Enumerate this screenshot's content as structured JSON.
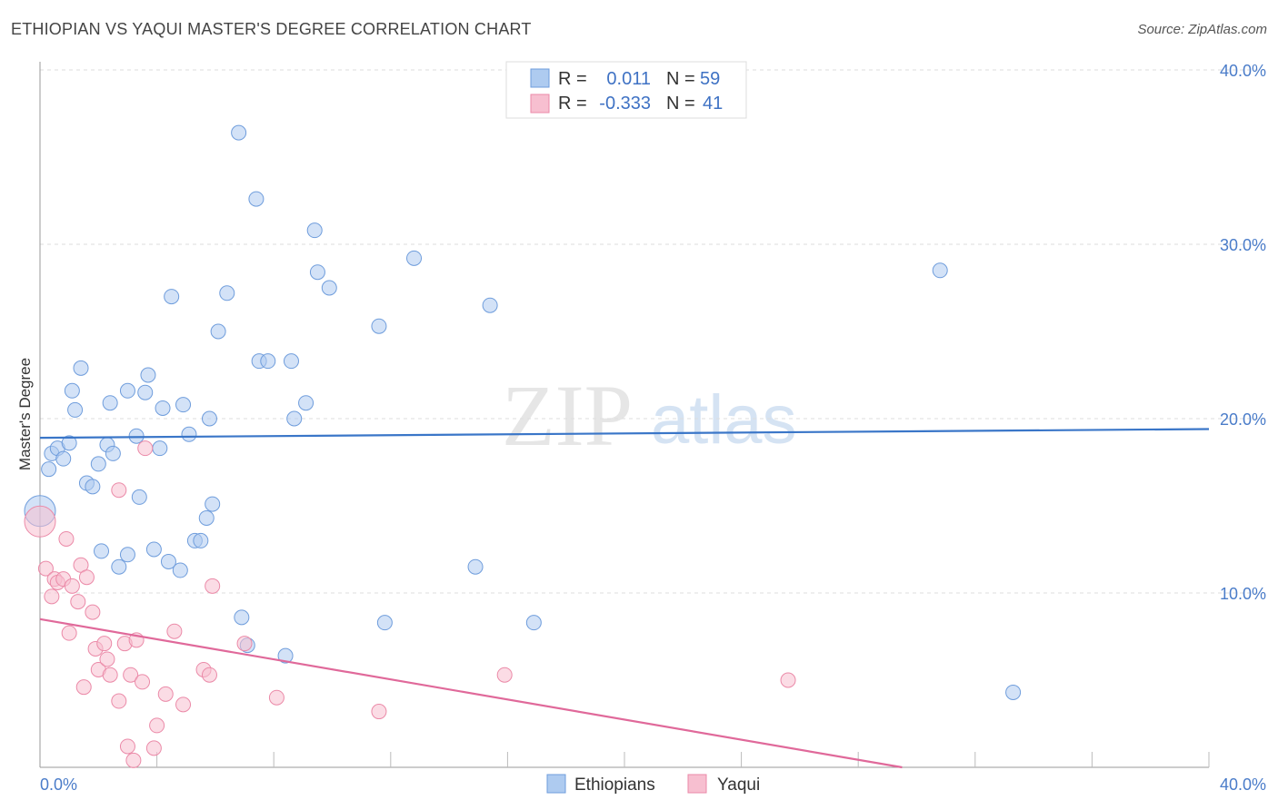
{
  "title": "ETHIOPIAN VS YAQUI MASTER'S DEGREE CORRELATION CHART",
  "source": "Source: ZipAtlas.com",
  "watermark": {
    "part1": "ZIP",
    "part2": "atlas"
  },
  "colors": {
    "blue_fill": "#aecbf0",
    "blue_stroke": "#6f9ddc",
    "blue_line": "#3a76c8",
    "pink_fill": "#f7bfd0",
    "pink_stroke": "#eb8aa8",
    "pink_line": "#e0699a",
    "grid": "#dddddd",
    "axis": "#999999"
  },
  "legend": {
    "rows": [
      {
        "r_label": "R =",
        "r_value": "0.011",
        "n_label": "N =",
        "n_value": "59"
      },
      {
        "r_label": "R =",
        "r_value": "-0.333",
        "n_label": "N =",
        "n_value": "41"
      }
    ]
  },
  "bottom_legend": {
    "series1": "Ethiopians",
    "series2": "Yaqui"
  },
  "chart_data": {
    "type": "scatter",
    "title": "ETHIOPIAN VS YAQUI MASTER'S DEGREE CORRELATION CHART",
    "xlabel": "",
    "ylabel": "Master's Degree",
    "xlim": [
      0,
      40
    ],
    "ylim": [
      0,
      40
    ],
    "x_tick_labels": [
      "0.0%",
      "40.0%"
    ],
    "y_ticks": [
      10,
      20,
      30,
      40
    ],
    "y_tick_labels": [
      "10.0%",
      "20.0%",
      "30.0%",
      "40.0%"
    ],
    "series": [
      {
        "name": "Ethiopians",
        "R": 0.011,
        "N": 59,
        "trend": {
          "x": [
            0,
            40
          ],
          "y": [
            18.9,
            19.4
          ]
        },
        "points": [
          {
            "x": 0.0,
            "y": 14.7,
            "big": true
          },
          {
            "x": 0.3,
            "y": 17.1
          },
          {
            "x": 0.4,
            "y": 18.0
          },
          {
            "x": 0.6,
            "y": 18.3
          },
          {
            "x": 0.8,
            "y": 17.7
          },
          {
            "x": 1.0,
            "y": 18.6
          },
          {
            "x": 1.1,
            "y": 21.6
          },
          {
            "x": 1.2,
            "y": 20.5
          },
          {
            "x": 1.4,
            "y": 22.9
          },
          {
            "x": 1.6,
            "y": 16.3
          },
          {
            "x": 1.8,
            "y": 16.1
          },
          {
            "x": 2.0,
            "y": 17.4
          },
          {
            "x": 2.1,
            "y": 12.4
          },
          {
            "x": 2.3,
            "y": 18.5
          },
          {
            "x": 2.4,
            "y": 20.9
          },
          {
            "x": 2.5,
            "y": 18.0
          },
          {
            "x": 2.7,
            "y": 11.5
          },
          {
            "x": 3.0,
            "y": 12.2
          },
          {
            "x": 3.0,
            "y": 21.6
          },
          {
            "x": 3.3,
            "y": 19.0
          },
          {
            "x": 3.4,
            "y": 15.5
          },
          {
            "x": 3.6,
            "y": 21.5
          },
          {
            "x": 3.7,
            "y": 22.5
          },
          {
            "x": 3.9,
            "y": 12.5
          },
          {
            "x": 4.1,
            "y": 18.3
          },
          {
            "x": 4.2,
            "y": 20.6
          },
          {
            "x": 4.4,
            "y": 11.8
          },
          {
            "x": 4.5,
            "y": 27.0
          },
          {
            "x": 4.8,
            "y": 11.3
          },
          {
            "x": 4.9,
            "y": 20.8
          },
          {
            "x": 5.1,
            "y": 19.1
          },
          {
            "x": 5.3,
            "y": 13.0
          },
          {
            "x": 5.5,
            "y": 13.0
          },
          {
            "x": 5.7,
            "y": 14.3
          },
          {
            "x": 5.8,
            "y": 20.0
          },
          {
            "x": 5.9,
            "y": 15.1
          },
          {
            "x": 6.1,
            "y": 25.0
          },
          {
            "x": 6.4,
            "y": 27.2
          },
          {
            "x": 6.8,
            "y": 36.4
          },
          {
            "x": 6.9,
            "y": 8.6
          },
          {
            "x": 7.1,
            "y": 7.0
          },
          {
            "x": 7.4,
            "y": 32.6
          },
          {
            "x": 7.5,
            "y": 23.3
          },
          {
            "x": 7.8,
            "y": 23.3
          },
          {
            "x": 8.4,
            "y": 6.4
          },
          {
            "x": 8.6,
            "y": 23.3
          },
          {
            "x": 8.7,
            "y": 20.0
          },
          {
            "x": 9.1,
            "y": 20.9
          },
          {
            "x": 9.4,
            "y": 30.8
          },
          {
            "x": 9.5,
            "y": 28.4
          },
          {
            "x": 9.9,
            "y": 27.5
          },
          {
            "x": 11.6,
            "y": 25.3
          },
          {
            "x": 11.8,
            "y": 8.3
          },
          {
            "x": 12.8,
            "y": 29.2
          },
          {
            "x": 14.9,
            "y": 11.5
          },
          {
            "x": 15.4,
            "y": 26.5
          },
          {
            "x": 16.9,
            "y": 8.3
          },
          {
            "x": 30.8,
            "y": 28.5
          },
          {
            "x": 33.3,
            "y": 4.3
          }
        ]
      },
      {
        "name": "Yaqui",
        "R": -0.333,
        "N": 41,
        "trend": {
          "x": [
            0,
            29.5
          ],
          "y": [
            8.5,
            0
          ]
        },
        "points": [
          {
            "x": 0.0,
            "y": 14.1,
            "big": true
          },
          {
            "x": 0.2,
            "y": 11.4
          },
          {
            "x": 0.4,
            "y": 9.8
          },
          {
            "x": 0.5,
            "y": 10.8
          },
          {
            "x": 0.6,
            "y": 10.6
          },
          {
            "x": 0.8,
            "y": 10.8
          },
          {
            "x": 0.9,
            "y": 13.1
          },
          {
            "x": 1.0,
            "y": 7.7
          },
          {
            "x": 1.1,
            "y": 10.4
          },
          {
            "x": 1.3,
            "y": 9.5
          },
          {
            "x": 1.4,
            "y": 11.6
          },
          {
            "x": 1.5,
            "y": 4.6
          },
          {
            "x": 1.6,
            "y": 10.9
          },
          {
            "x": 1.8,
            "y": 8.9
          },
          {
            "x": 1.9,
            "y": 6.8
          },
          {
            "x": 2.0,
            "y": 5.6
          },
          {
            "x": 2.2,
            "y": 7.1
          },
          {
            "x": 2.3,
            "y": 6.2
          },
          {
            "x": 2.4,
            "y": 5.3
          },
          {
            "x": 2.7,
            "y": 15.9
          },
          {
            "x": 2.7,
            "y": 3.8
          },
          {
            "x": 2.9,
            "y": 7.1
          },
          {
            "x": 3.0,
            "y": 1.2
          },
          {
            "x": 3.1,
            "y": 5.3
          },
          {
            "x": 3.2,
            "y": 0.4
          },
          {
            "x": 3.3,
            "y": 7.3
          },
          {
            "x": 3.5,
            "y": 4.9
          },
          {
            "x": 3.6,
            "y": 18.3
          },
          {
            "x": 3.9,
            "y": 1.1
          },
          {
            "x": 4.0,
            "y": 2.4
          },
          {
            "x": 4.3,
            "y": 4.2
          },
          {
            "x": 4.6,
            "y": 7.8
          },
          {
            "x": 4.9,
            "y": 3.6
          },
          {
            "x": 5.6,
            "y": 5.6
          },
          {
            "x": 5.8,
            "y": 5.3
          },
          {
            "x": 5.9,
            "y": 10.4
          },
          {
            "x": 7.0,
            "y": 7.1
          },
          {
            "x": 8.1,
            "y": 4.0
          },
          {
            "x": 11.6,
            "y": 3.2
          },
          {
            "x": 15.9,
            "y": 5.3
          },
          {
            "x": 25.6,
            "y": 5.0
          }
        ]
      }
    ]
  }
}
